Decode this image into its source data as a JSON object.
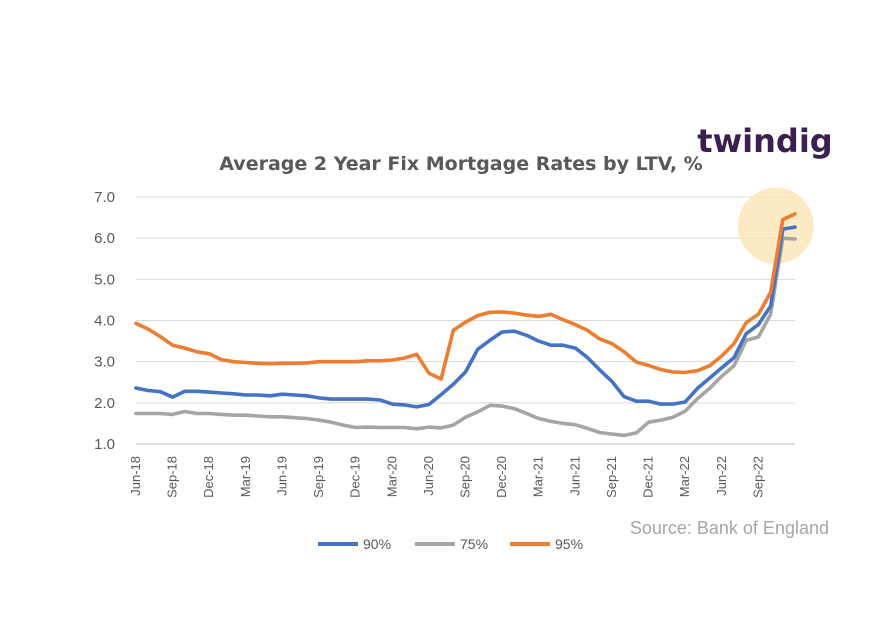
{
  "logo_text": "twindig",
  "source_text": "Source: Bank of England",
  "chart_data": {
    "type": "line",
    "title": "Average 2 Year Fix Mortgage Rates by LTV, %",
    "ylim": [
      1.0,
      7.0
    ],
    "yticks": [
      "1.0",
      "2.0",
      "3.0",
      "4.0",
      "5.0",
      "6.0",
      "7.0"
    ],
    "x_start": "Jun-18",
    "x_end": "Dec-22",
    "xtick_labels": [
      "Jun-18",
      "Sep-18",
      "Dec-18",
      "Mar-19",
      "Jun-19",
      "Sep-19",
      "Dec-19",
      "Mar-20",
      "Jun-20",
      "Sep-20",
      "Dec-20",
      "Mar-21",
      "Jun-21",
      "Sep-21",
      "Dec-21",
      "Mar-22",
      "Jun-22",
      "Sep-22"
    ],
    "grid": true,
    "legend_position": "bottom",
    "highlight_region": {
      "x": "Nov-22",
      "y": 6.3
    },
    "series": [
      {
        "name": "90%",
        "color": "#4472c4",
        "values": [
          2.36,
          2.3,
          2.27,
          2.14,
          2.28,
          2.28,
          2.26,
          2.24,
          2.22,
          2.19,
          2.19,
          2.17,
          2.21,
          2.19,
          2.17,
          2.12,
          2.09,
          2.09,
          2.09,
          2.09,
          2.07,
          1.97,
          1.95,
          1.9,
          1.96,
          2.2,
          2.45,
          2.75,
          3.3,
          3.52,
          3.72,
          3.74,
          3.64,
          3.5,
          3.4,
          3.4,
          3.33,
          3.1,
          2.8,
          2.52,
          2.15,
          2.04,
          2.04,
          1.97,
          1.97,
          2.02,
          2.35,
          2.6,
          2.85,
          3.1,
          3.68,
          3.9,
          4.35,
          6.22,
          6.27
        ]
      },
      {
        "name": "75%",
        "color": "#a5a5a5",
        "values": [
          1.74,
          1.74,
          1.74,
          1.72,
          1.79,
          1.74,
          1.74,
          1.72,
          1.7,
          1.7,
          1.68,
          1.66,
          1.66,
          1.64,
          1.62,
          1.58,
          1.53,
          1.46,
          1.4,
          1.41,
          1.4,
          1.4,
          1.4,
          1.37,
          1.41,
          1.39,
          1.46,
          1.65,
          1.78,
          1.94,
          1.92,
          1.86,
          1.74,
          1.62,
          1.55,
          1.5,
          1.47,
          1.38,
          1.28,
          1.24,
          1.21,
          1.27,
          1.53,
          1.58,
          1.65,
          1.8,
          2.1,
          2.35,
          2.65,
          2.9,
          3.52,
          3.6,
          4.15,
          6.0,
          5.98
        ]
      },
      {
        "name": "95%",
        "color": "#ed7d31",
        "values": [
          3.93,
          3.79,
          3.61,
          3.4,
          3.33,
          3.24,
          3.19,
          3.05,
          3.0,
          2.98,
          2.96,
          2.95,
          2.96,
          2.96,
          2.97,
          3.0,
          3.0,
          3.0,
          3.0,
          3.02,
          3.02,
          3.04,
          3.09,
          3.18,
          2.72,
          2.58,
          3.76,
          3.96,
          4.12,
          4.2,
          4.21,
          4.18,
          4.13,
          4.1,
          4.15,
          4.02,
          3.9,
          3.76,
          3.55,
          3.44,
          3.24,
          2.99,
          2.91,
          2.81,
          2.75,
          2.74,
          2.78,
          2.9,
          3.14,
          3.44,
          3.95,
          4.15,
          4.68,
          6.45,
          6.59
        ]
      }
    ]
  }
}
